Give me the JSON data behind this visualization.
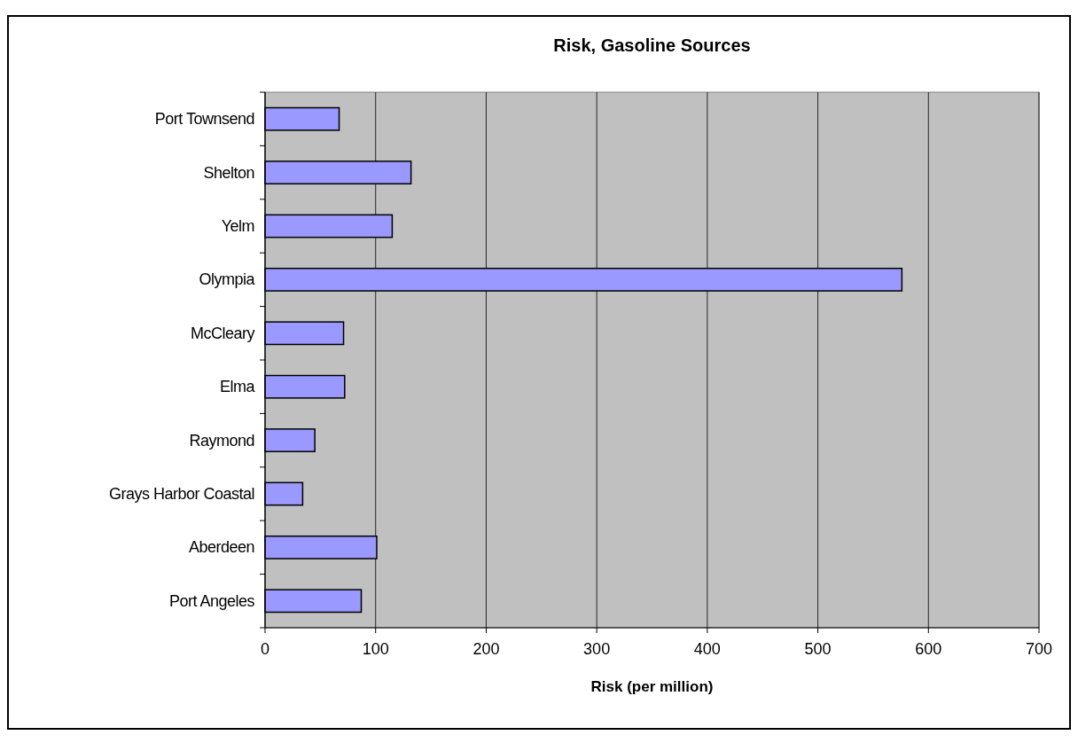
{
  "chart_data": {
    "type": "bar",
    "orientation": "horizontal",
    "title": "Risk, Gasoline Sources",
    "xlabel": "Risk (per million)",
    "categories": [
      "Port Townsend",
      "Shelton",
      "Yelm",
      "Olympia",
      "McCleary",
      "Elma",
      "Raymond",
      "Grays Harbor Coastal",
      "Aberdeen",
      "Port Angeles"
    ],
    "values": [
      67,
      132,
      115,
      576,
      71,
      72,
      45,
      34,
      101,
      87
    ],
    "color": "#9999ff",
    "xlim": [
      0,
      700
    ],
    "xticks": [
      0,
      100,
      200,
      300,
      400,
      500,
      600,
      700
    ],
    "grid": "x"
  }
}
